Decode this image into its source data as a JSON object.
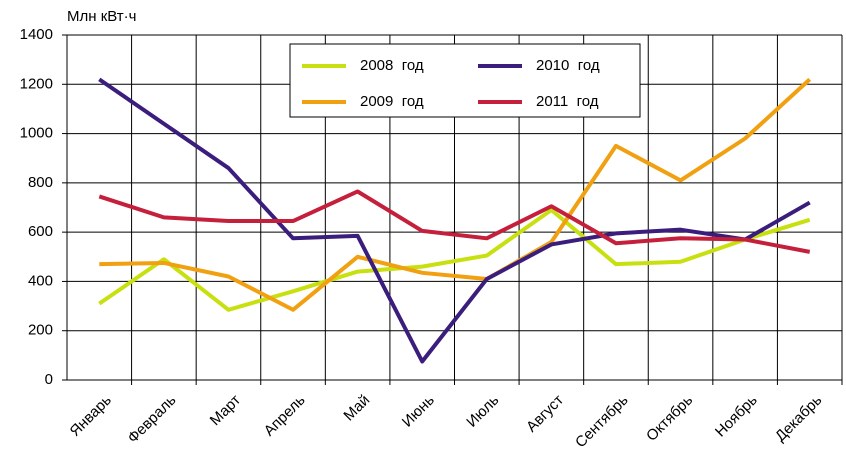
{
  "chart_data": {
    "type": "line",
    "y_label": "Млн кВт·ч",
    "categories": [
      "Январь",
      "Февраль",
      "Март",
      "Апрель",
      "Май",
      "Июнь",
      "Июль",
      "Август",
      "Сентябрь",
      "Октябрь",
      "Ноябрь",
      "Декабрь"
    ],
    "series": [
      {
        "name": "2008  год",
        "color": "#c8e010",
        "values": [
          310,
          490,
          285,
          360,
          440,
          460,
          505,
          690,
          470,
          480,
          570,
          650
        ]
      },
      {
        "name": "2009  год",
        "color": "#f0a010",
        "values": [
          470,
          475,
          420,
          285,
          500,
          435,
          410,
          560,
          950,
          810,
          980,
          1220
        ]
      },
      {
        "name": "2010  год",
        "color": "#3a1d7c",
        "values": [
          1220,
          1040,
          860,
          575,
          585,
          75,
          410,
          550,
          595,
          610,
          570,
          720
        ]
      },
      {
        "name": "2011  год",
        "color": "#c4203c",
        "values": [
          745,
          660,
          645,
          645,
          765,
          605,
          575,
          705,
          555,
          575,
          570,
          520
        ]
      }
    ],
    "ylim": [
      0,
      1400
    ],
    "yticks": [
      0,
      200,
      400,
      600,
      800,
      1000,
      1200,
      1400
    ],
    "grid": true
  }
}
